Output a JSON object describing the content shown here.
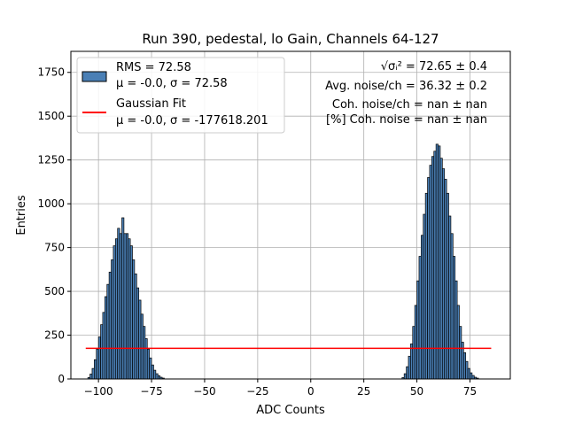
{
  "chart_data": {
    "type": "bar",
    "title": "Run 390, pedestal, lo Gain, Channels 64-127",
    "xlabel": "ADC Counts",
    "ylabel": "Entries",
    "xlim": [
      -113,
      94
    ],
    "ylim": [
      0,
      1870
    ],
    "xticks": [
      -100,
      -75,
      -50,
      -25,
      0,
      25,
      50,
      75
    ],
    "yticks": [
      0,
      250,
      500,
      750,
      1000,
      1250,
      1500,
      1750
    ],
    "grid": true,
    "legend_position": "upper-left",
    "bin_width": 1,
    "histogram": {
      "name_lines": [
        "RMS = 72.58",
        "μ = -0.0, σ = 72.58"
      ],
      "color": "#4a7fb5",
      "edge_color": "#000000",
      "bins": [
        [
          -105,
          8
        ],
        [
          -104,
          28
        ],
        [
          -103,
          60
        ],
        [
          -102,
          110
        ],
        [
          -101,
          170
        ],
        [
          -100,
          240
        ],
        [
          -99,
          310
        ],
        [
          -98,
          380
        ],
        [
          -97,
          470
        ],
        [
          -96,
          540
        ],
        [
          -95,
          610
        ],
        [
          -94,
          680
        ],
        [
          -93,
          760
        ],
        [
          -92,
          800
        ],
        [
          -91,
          860
        ],
        [
          -90,
          830
        ],
        [
          -89,
          920
        ],
        [
          -88,
          830
        ],
        [
          -87,
          830
        ],
        [
          -86,
          800
        ],
        [
          -85,
          760
        ],
        [
          -84,
          680
        ],
        [
          -83,
          600
        ],
        [
          -82,
          520
        ],
        [
          -81,
          450
        ],
        [
          -80,
          370
        ],
        [
          -79,
          300
        ],
        [
          -78,
          230
        ],
        [
          -77,
          170
        ],
        [
          -76,
          120
        ],
        [
          -75,
          80
        ],
        [
          -74,
          50
        ],
        [
          -73,
          30
        ],
        [
          -72,
          18
        ],
        [
          -71,
          10
        ],
        [
          -70,
          5
        ],
        [
          43,
          8
        ],
        [
          44,
          30
        ],
        [
          45,
          70
        ],
        [
          46,
          130
        ],
        [
          47,
          200
        ],
        [
          48,
          300
        ],
        [
          49,
          420
        ],
        [
          50,
          560
        ],
        [
          51,
          700
        ],
        [
          52,
          820
        ],
        [
          53,
          940
        ],
        [
          54,
          1060
        ],
        [
          55,
          1150
        ],
        [
          56,
          1220
        ],
        [
          57,
          1270
        ],
        [
          58,
          1300
        ],
        [
          59,
          1340
        ],
        [
          60,
          1330
        ],
        [
          61,
          1260
        ],
        [
          62,
          1200
        ],
        [
          63,
          1140
        ],
        [
          64,
          1060
        ],
        [
          65,
          930
        ],
        [
          66,
          830
        ],
        [
          67,
          700
        ],
        [
          68,
          560
        ],
        [
          69,
          420
        ],
        [
          70,
          300
        ],
        [
          71,
          210
        ],
        [
          72,
          150
        ],
        [
          73,
          100
        ],
        [
          74,
          60
        ],
        [
          75,
          35
        ],
        [
          76,
          20
        ],
        [
          77,
          10
        ],
        [
          78,
          5
        ]
      ]
    },
    "fit": {
      "name_lines": [
        "Gaussian Fit",
        "μ = -0.0, σ = -177618.201"
      ],
      "color": "#ff0000",
      "x_range": [
        -106,
        85
      ],
      "y_value": 175
    },
    "annotations": [
      "√σᵢ² = 72.65 ± 0.4",
      "Avg. noise/ch = 36.32 ± 0.2",
      "Coh. noise/ch = nan ± nan",
      "[%] Coh. noise = nan ± nan"
    ]
  }
}
